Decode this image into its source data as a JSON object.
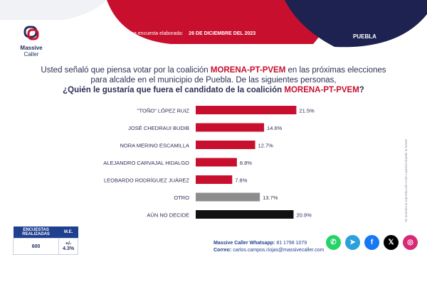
{
  "header": {
    "logo_line1": "Massive",
    "logo_line2": "Caller",
    "date_label": "Última encuesta elaborada:",
    "date_value": "26 DE DICIEMBRE DEL 2023",
    "place": "PUEBLA",
    "top_dark": "#1d2250",
    "top_red": "#c8102e"
  },
  "question": {
    "line1_pre": "Usted señaló que piensa votar por la coalición ",
    "line1_highlight": "MORENA-PT-PVEM",
    "line1_post": " en las próximas elecciones",
    "line2": "para alcalde en el municipio de Puebla.  De las siguientes personas,",
    "line3_pre": "¿Quién le gustaría que fuera el candidato de la coalición ",
    "line3_highlight": "MORENA-PT-PVEM",
    "line3_post": "?"
  },
  "chart_data": {
    "type": "bar",
    "orientation": "horizontal",
    "categories": [
      "\"TOÑO\" LÓPEZ RUIZ",
      "JOSÉ CHEDRAUI BUDIB",
      "NORA MERINO ESCAMILLA",
      "ALEJANDRO CARVAJAL HIDALGO",
      "LEOBARDO RODRÍGUEZ JUÁREZ",
      "OTRO",
      "AÚN NO DECIDE"
    ],
    "values": [
      21.5,
      14.6,
      12.7,
      8.8,
      7.8,
      13.7,
      20.9
    ],
    "value_labels": [
      "21.5%",
      "14.6%",
      "12.7%",
      "8.8%",
      "7.8%",
      "13.7%",
      "20.9%"
    ],
    "colors": [
      "#c8102e",
      "#c8102e",
      "#c8102e",
      "#c8102e",
      "#c8102e",
      "#8c8c8c",
      "#111111"
    ],
    "xlim": [
      0,
      22.5
    ],
    "unit": "%"
  },
  "credit_text": "Se autoriza la reproducción total o parcial citando la fuente",
  "summary": {
    "col1": "ENCUESTAS REALIZADAS",
    "col2": "M.E.",
    "val1": "600",
    "val2": "+/- 4.3%"
  },
  "contact": {
    "whatsapp_label": "Massive Caller Whatsapp:",
    "whatsapp_value": "81 1798 1079",
    "email_label": "Correo:",
    "email_value": "carlos.campos.riojas@massivecaller.com"
  },
  "social": [
    {
      "icon": "whatsapp-icon",
      "color": "#25d366",
      "glyph": "✆"
    },
    {
      "icon": "telegram-icon",
      "color": "#2aa1da",
      "glyph": "➤"
    },
    {
      "icon": "facebook-icon",
      "color": "#1877f2",
      "glyph": "f"
    },
    {
      "icon": "x-icon",
      "color": "#000000",
      "glyph": "𝕏"
    },
    {
      "icon": "instagram-icon",
      "color": "#d62976",
      "glyph": "◎"
    }
  ]
}
